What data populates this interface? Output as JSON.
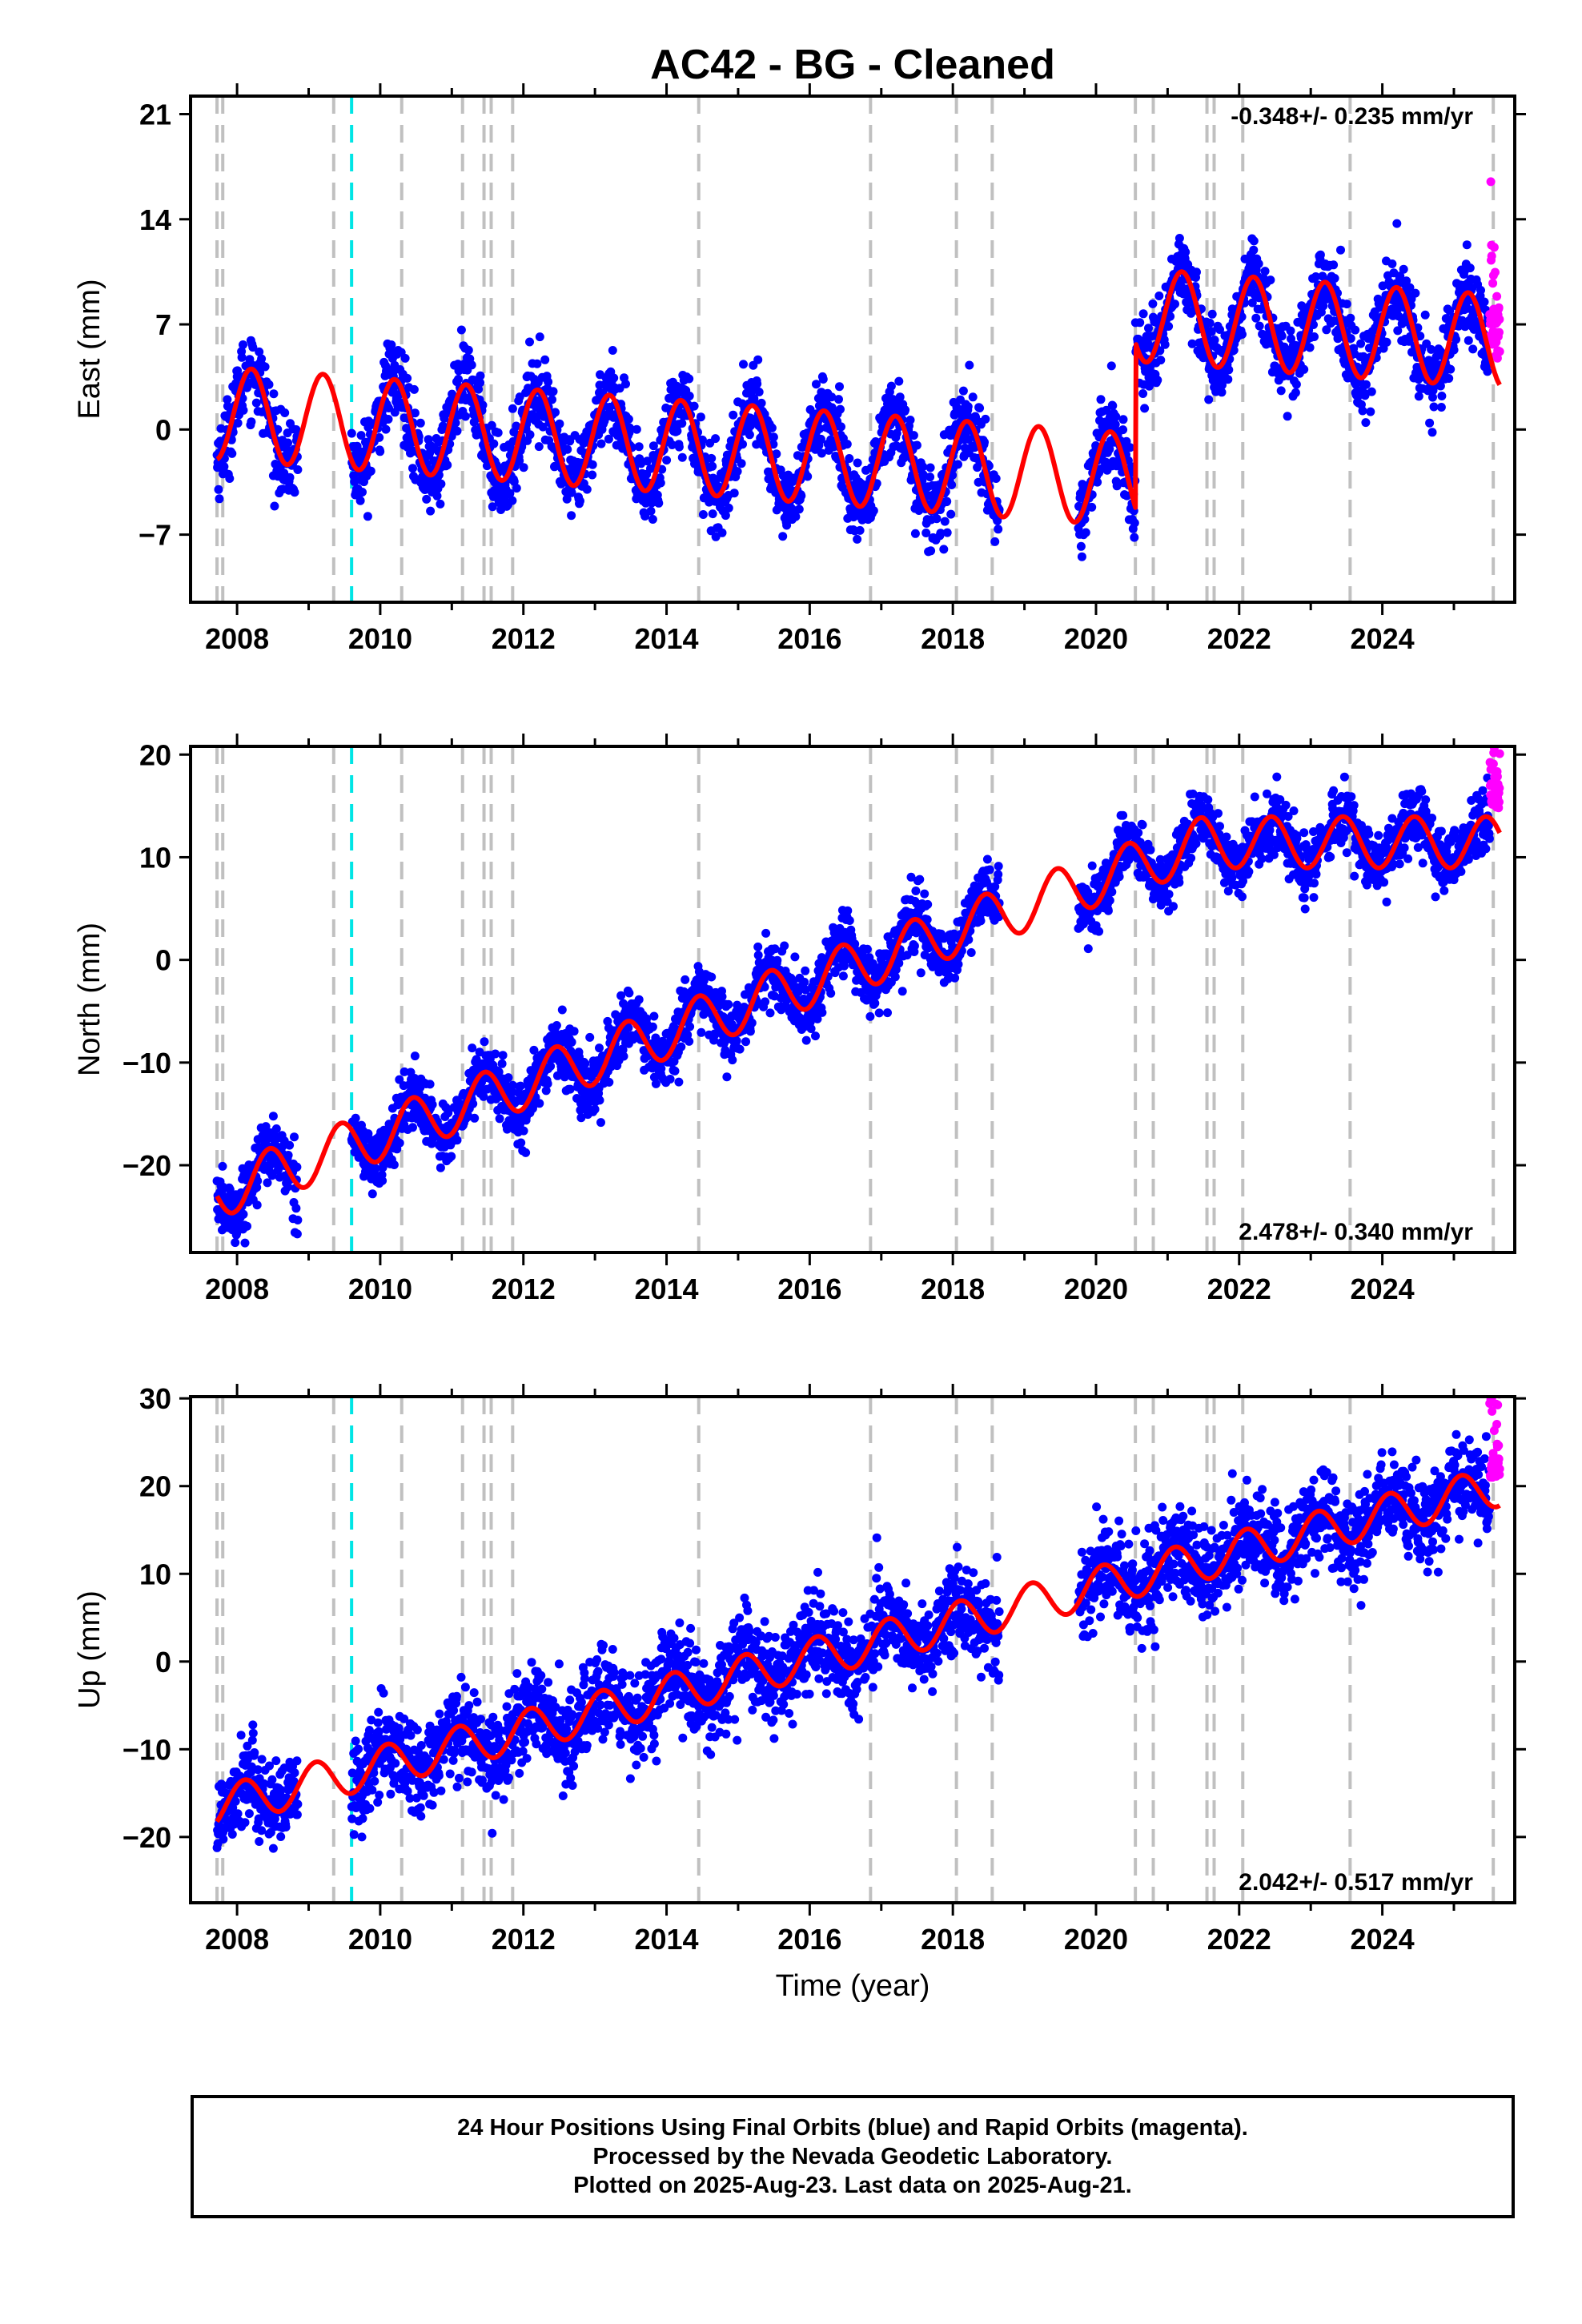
{
  "figure": {
    "title": "AC42  - BG - Cleaned",
    "xlabel": "Time (year)",
    "footer": [
      "24 Hour Positions Using Final Orbits (blue) and Rapid Orbits (magenta).",
      "Processed by the Nevada Geodetic Laboratory.",
      "Plotted on 2025-Aug-23. Last data on 2025-Aug-21."
    ],
    "colors": {
      "final_orbits": "#0000ff",
      "rapid_orbits": "#ff00ff",
      "model_fit": "#ff0000",
      "equipment_change": "#c0c0c0",
      "event": "#00e5e5"
    }
  },
  "chart_data": [
    {
      "type": "scatter",
      "ylabel": "East (mm)",
      "rate_label": "-0.348+/- 0.235 mm/yr",
      "xlim": [
        2007.35,
        2025.85
      ],
      "ylim": [
        -11.5,
        22.2
      ],
      "yticks": [
        -7,
        0,
        7,
        14,
        21
      ],
      "ytick_labels": [
        "−7",
        "0",
        "7",
        "14",
        "21"
      ],
      "xticks": [
        2008,
        2010,
        2012,
        2014,
        2016,
        2018,
        2020,
        2022,
        2024
      ],
      "xtick_labels": [
        "2008",
        "2010",
        "2012",
        "2014",
        "2016",
        "2018",
        "2020",
        "2022",
        "2024"
      ],
      "gaps": [
        [
          2008.85,
          2009.6
        ],
        [
          2018.65,
          2019.75
        ]
      ],
      "steps": [
        {
          "x": 2020.55,
          "dy": 11
        }
      ],
      "model": {
        "a": 1,
        "b": -0.348,
        "t0": 2008,
        "amp": 3.1,
        "phase": 0.95
      },
      "data_span": [
        2007.72,
        2025.58
      ],
      "rapid_span": [
        2025.5,
        2025.64
      ],
      "scatter_sd": 1.3,
      "series": [
        {
          "name": "Final Orbits",
          "color": "#0000ff"
        },
        {
          "name": "Rapid Orbits",
          "color": "#ff00ff"
        }
      ]
    },
    {
      "type": "scatter",
      "ylabel": "North (mm)",
      "rate_label": "2.478+/- 0.340 mm/yr",
      "xlim": [
        2007.35,
        2025.85
      ],
      "ylim": [
        -28.5,
        20.8
      ],
      "yticks": [
        -20,
        -10,
        0,
        10,
        20
      ],
      "ytick_labels": [
        "−20",
        "−10",
        "0",
        "10",
        "20"
      ],
      "xticks": [
        2008,
        2010,
        2012,
        2014,
        2016,
        2018,
        2020,
        2022,
        2024
      ],
      "xtick_labels": [
        "2008",
        "2010",
        "2012",
        "2014",
        "2016",
        "2018",
        "2020",
        "2022",
        "2024"
      ],
      "gaps": [
        [
          2008.85,
          2009.6
        ],
        [
          2018.65,
          2019.75
        ]
      ],
      "steps": [],
      "model": {
        "a": -22,
        "b": 2.478,
        "t0": 2008,
        "amp": 2.5,
        "phase": 0.2
      },
      "plateau_after": 2021.5,
      "data_span": [
        2007.72,
        2025.58
      ],
      "rapid_span": [
        2025.5,
        2025.64
      ],
      "scatter_sd": 1.5,
      "series": [
        {
          "name": "Final Orbits",
          "color": "#0000ff"
        },
        {
          "name": "Rapid Orbits",
          "color": "#ff00ff"
        }
      ]
    },
    {
      "type": "scatter",
      "ylabel": "Up (mm)",
      "rate_label": "2.042+/- 0.517 mm/yr",
      "xlim": [
        2007.35,
        2025.85
      ],
      "ylim": [
        -27.5,
        30.2
      ],
      "yticks": [
        -20,
        -10,
        0,
        10,
        20,
        30
      ],
      "ytick_labels": [
        "−20",
        "−10",
        "0",
        "10",
        "20",
        "30"
      ],
      "xticks": [
        2008,
        2010,
        2012,
        2014,
        2016,
        2018,
        2020,
        2022,
        2024
      ],
      "xtick_labels": [
        "2008",
        "2010",
        "2012",
        "2014",
        "2016",
        "2018",
        "2020",
        "2022",
        "2024"
      ],
      "gaps": [
        [
          2008.85,
          2009.6
        ],
        [
          2018.65,
          2019.75
        ]
      ],
      "steps": [],
      "model": {
        "a": -16,
        "b": 2.042,
        "t0": 2008,
        "amp": 2.3,
        "phase": 0.85
      },
      "data_span": [
        2007.72,
        2025.58
      ],
      "rapid_span": [
        2025.5,
        2025.64
      ],
      "scatter_sd": 2.6,
      "series": [
        {
          "name": "Final Orbits",
          "color": "#0000ff"
        },
        {
          "name": "Rapid Orbits",
          "color": "#ff00ff"
        }
      ]
    }
  ],
  "equipment_changes": [
    2007.72,
    2007.8,
    2009.35,
    2010.3,
    2011.15,
    2011.45,
    2011.55,
    2011.85,
    2014.45,
    2016.85,
    2018.05,
    2018.55,
    2020.55,
    2020.8,
    2021.55,
    2021.65,
    2022.05,
    2023.55,
    2025.55
  ],
  "events": [
    2009.6
  ]
}
